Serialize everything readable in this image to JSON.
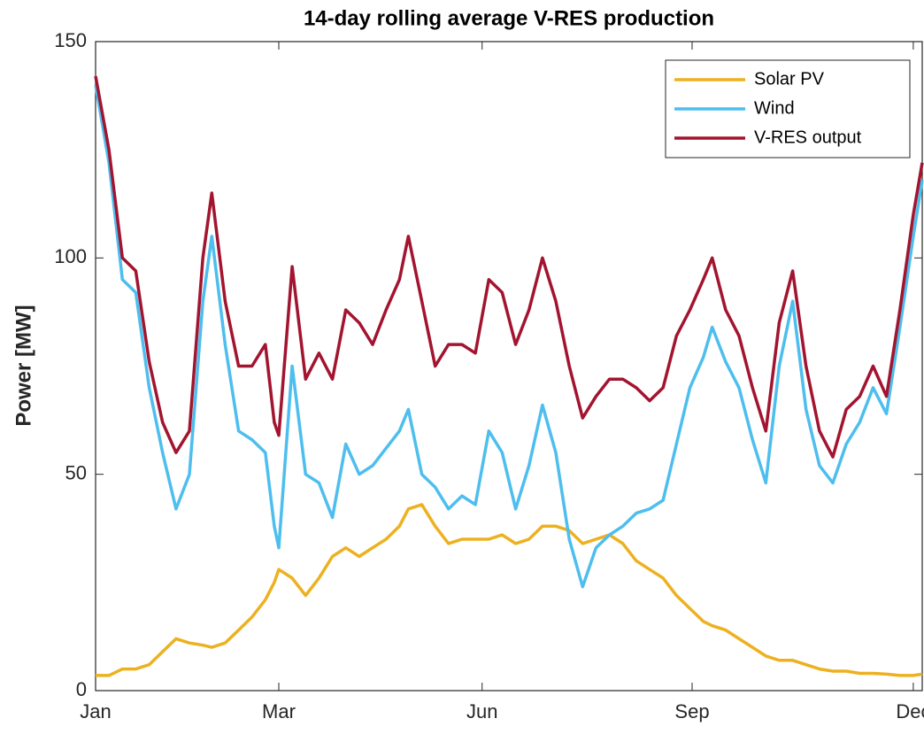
{
  "chart_data": {
    "type": "line",
    "title": "14-day rolling average V-RES production",
    "ylabel": "Power [MW]",
    "x": [
      0,
      6,
      12,
      18,
      24,
      30,
      36,
      42,
      48,
      52,
      58,
      64,
      70,
      76,
      80,
      82,
      88,
      94,
      100,
      106,
      112,
      118,
      124,
      130,
      136,
      140,
      146,
      152,
      158,
      164,
      170,
      176,
      182,
      188,
      194,
      200,
      206,
      212,
      218,
      224,
      230,
      236,
      242,
      248,
      254,
      260,
      266,
      272,
      276,
      282,
      288,
      294,
      300,
      306,
      312,
      318,
      324,
      330,
      336,
      342,
      348,
      354,
      360,
      366,
      370
    ],
    "series": [
      {
        "name": "Solar PV",
        "color": "#edb120",
        "values": [
          3.5,
          3.5,
          5,
          5,
          6,
          9,
          12,
          11,
          10.5,
          10,
          11,
          14,
          17,
          21,
          25,
          28,
          26,
          22,
          26,
          31,
          33,
          31,
          33,
          35,
          38,
          42,
          43,
          38,
          34,
          35,
          35,
          35,
          36,
          34,
          35,
          38,
          38,
          37,
          34,
          35,
          36,
          34,
          30,
          28,
          26,
          22,
          19,
          16,
          15,
          14,
          12,
          10,
          8,
          7,
          7,
          6,
          5,
          4.5,
          4.5,
          4,
          4,
          3.8,
          3.5,
          3.5,
          3.8
        ]
      },
      {
        "name": "Wind",
        "color": "#4dbeee",
        "values": [
          140,
          122,
          95,
          92,
          70,
          55,
          42,
          50,
          90,
          105,
          80,
          60,
          58,
          55,
          38,
          33,
          75,
          50,
          48,
          40,
          57,
          50,
          52,
          56,
          60,
          65,
          50,
          47,
          42,
          45,
          43,
          60,
          55,
          42,
          52,
          66,
          55,
          35,
          24,
          33,
          36,
          38,
          41,
          42,
          44,
          57,
          70,
          77,
          84,
          76,
          70,
          58,
          48,
          75,
          90,
          65,
          52,
          48,
          57,
          62,
          70,
          64,
          84,
          105,
          118
        ]
      },
      {
        "name": "V-RES output",
        "color": "#a2142f",
        "values": [
          142,
          125,
          100,
          97,
          76,
          62,
          55,
          60,
          100,
          115,
          90,
          75,
          75,
          80,
          62,
          59,
          98,
          72,
          78,
          72,
          88,
          85,
          80,
          88,
          95,
          105,
          90,
          75,
          80,
          80,
          78,
          95,
          92,
          80,
          88,
          100,
          90,
          75,
          63,
          68,
          72,
          72,
          70,
          67,
          70,
          82,
          88,
          95,
          100,
          88,
          82,
          70,
          60,
          85,
          97,
          75,
          60,
          54,
          65,
          68,
          75,
          68,
          88,
          110,
          122
        ]
      }
    ],
    "xlim": [
      0,
      370
    ],
    "xticks": [
      {
        "value": 0,
        "label": "Jan"
      },
      {
        "value": 82,
        "label": "Mar"
      },
      {
        "value": 173,
        "label": "Jun"
      },
      {
        "value": 267,
        "label": "Sep"
      },
      {
        "value": 366,
        "label": "Dec"
      }
    ],
    "ylim": [
      0,
      150
    ],
    "yticks": [
      0,
      50,
      100,
      150
    ],
    "legend": "upper right"
  }
}
